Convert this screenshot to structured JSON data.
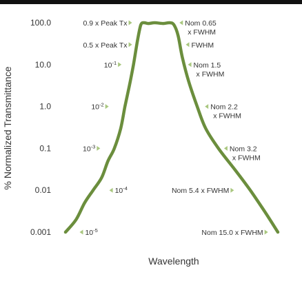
{
  "chart_data": {
    "type": "line",
    "xlabel": "Wavelength",
    "ylabel": "% Normalized Transmittance",
    "y_scale": "log",
    "y_ticks": [
      {
        "value": 100,
        "label": "100.0"
      },
      {
        "value": 10,
        "label": "10.0"
      },
      {
        "value": 1,
        "label": "1.0"
      },
      {
        "value": 0.1,
        "label": "0.1"
      },
      {
        "value": 0.01,
        "label": "0.01"
      },
      {
        "value": 0.001,
        "label": "0.001"
      }
    ],
    "ylim": [
      0.001,
      100
    ],
    "xlim": [
      0,
      100
    ],
    "grid": false,
    "line_color": "#6b8e3d",
    "marker_color": "#a9c77f",
    "series": [
      {
        "points": [
          [
            0,
            0.001
          ],
          [
            5,
            0.002
          ],
          [
            9,
            0.005
          ],
          [
            13,
            0.01
          ],
          [
            17,
            0.02
          ],
          [
            20,
            0.05
          ],
          [
            23,
            0.1
          ],
          [
            26,
            0.3
          ],
          [
            28,
            1
          ],
          [
            30,
            3
          ],
          [
            32,
            10
          ],
          [
            34,
            40
          ],
          [
            35.5,
            90
          ],
          [
            37,
            100
          ],
          [
            39,
            96
          ],
          [
            42,
            100
          ],
          [
            46,
            96
          ],
          [
            49,
            100
          ],
          [
            51,
            90
          ],
          [
            53,
            50
          ],
          [
            55,
            15
          ],
          [
            58,
            4
          ],
          [
            62,
            1
          ],
          [
            66,
            0.3
          ],
          [
            72,
            0.1
          ],
          [
            80,
            0.03
          ],
          [
            87,
            0.01
          ],
          [
            94,
            0.003
          ],
          [
            100,
            0.001
          ]
        ]
      }
    ],
    "annotations": [
      {
        "text": "0.9 x Peak Tx",
        "side": "left",
        "x": 32,
        "y": 100
      },
      {
        "text": "0.5 x Peak Tx",
        "side": "left",
        "x": 32,
        "y": 30
      },
      {
        "text": "10",
        "sup": "-1",
        "side": "left",
        "x": 27,
        "y": 10
      },
      {
        "text": "10",
        "sup": "-2",
        "side": "left",
        "x": 21,
        "y": 1
      },
      {
        "text": "10",
        "sup": "-3",
        "side": "left",
        "x": 17,
        "y": 0.1
      },
      {
        "text": "10",
        "sup": "-4",
        "side": "right",
        "x": 20,
        "y": 0.01
      },
      {
        "text": "10",
        "sup": "-5",
        "side": "right",
        "x": 6,
        "y": 0.001
      },
      {
        "text": "Nom 0.65",
        "text2": "x FWHM",
        "side": "right",
        "x": 53,
        "y": 100
      },
      {
        "text": "FWHM",
        "side": "right",
        "x": 56,
        "y": 30
      },
      {
        "text": "Nom 1.5",
        "text2": "x FWHM",
        "side": "right",
        "x": 57,
        "y": 10
      },
      {
        "text": "Nom 2.2",
        "text2": "x FWHM",
        "side": "right",
        "x": 65,
        "y": 1
      },
      {
        "text": "Nom 3.2",
        "text2": "x FWHM",
        "side": "right",
        "x": 74,
        "y": 0.1
      },
      {
        "text": "Nom 5.4 x FWHM",
        "side": "left",
        "x": 80,
        "y": 0.01
      },
      {
        "text": "Nom 15.0 x FWHM",
        "side": "left",
        "x": 96,
        "y": 0.001
      }
    ]
  }
}
